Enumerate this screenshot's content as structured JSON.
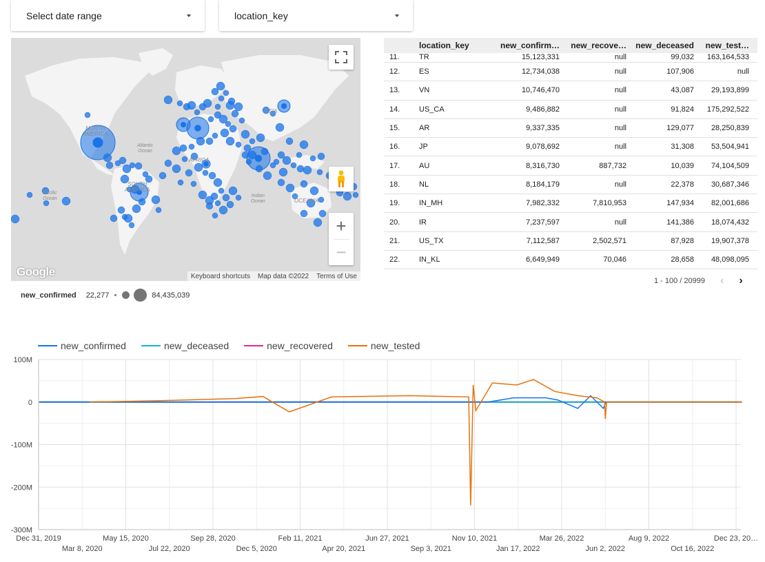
{
  "filters": {
    "date_range": "Select date range",
    "dimension": "location_key"
  },
  "map": {
    "labels": {
      "north_america": "NORTH\nAMERICA",
      "south_america": "SOUTH\nAMERICA",
      "africa": "AFRICA",
      "asia": "ASIA",
      "oceania": "OCEANIA",
      "atlantic": "Atlantic\nOcean",
      "pacific": "Pacific\nOcean",
      "indian": "Indian\nOcean"
    },
    "logo": "Google",
    "attribution": {
      "shortcuts": "Keyboard shortcuts",
      "map_data": "Map data ©2022",
      "terms": "Terms of Use"
    },
    "zoom_in": "+",
    "zoom_out": "−",
    "bubble_color": "#1a73e8"
  },
  "map_legend": {
    "metric": "new_confirmed",
    "min": "22,277",
    "max": "84,435,039"
  },
  "table": {
    "columns": [
      "location_key",
      "new_confirm…",
      "new_recove…",
      "new_deceased",
      "new_test…"
    ],
    "rows": [
      [
        "11.",
        "TR",
        "15,123,331",
        "null",
        "99,032",
        "163,164,533"
      ],
      [
        "12.",
        "ES",
        "12,734,038",
        "null",
        "107,906",
        "null"
      ],
      [
        "13.",
        "VN",
        "10,746,470",
        "null",
        "43,087",
        "29,193,899"
      ],
      [
        "14.",
        "US_CA",
        "9,486,882",
        "null",
        "91,824",
        "175,292,522"
      ],
      [
        "15.",
        "AR",
        "9,337,335",
        "null",
        "129,077",
        "28,250,839"
      ],
      [
        "16.",
        "JP",
        "9,078,692",
        "null",
        "31,308",
        "53,504,941"
      ],
      [
        "17.",
        "AU",
        "8,316,730",
        "887,732",
        "10,039",
        "74,104,509"
      ],
      [
        "18.",
        "NL",
        "8,184,179",
        "null",
        "22,378",
        "30,687,346"
      ],
      [
        "19.",
        "IN_MH",
        "7,982,332",
        "7,810,953",
        "147,934",
        "82,001,686"
      ],
      [
        "20.",
        "IR",
        "7,237,597",
        "null",
        "141,386",
        "18,074,432"
      ],
      [
        "21.",
        "US_TX",
        "7,112,587",
        "2,502,571",
        "87,928",
        "19,907,378"
      ],
      [
        "22.",
        "IN_KL",
        "6,649,949",
        "70,046",
        "28,658",
        "48,098,095"
      ]
    ],
    "pagination": "1 - 100 / 20999"
  },
  "chart_data": {
    "type": "line",
    "series": [
      {
        "name": "new_confirmed",
        "color": "#1a73e8"
      },
      {
        "name": "new_deceased",
        "color": "#12b5cb"
      },
      {
        "name": "new_recovered",
        "color": "#e52592"
      },
      {
        "name": "new_tested",
        "color": "#e8710a"
      }
    ],
    "y_ticks": [
      "100M",
      "0",
      "-100M",
      "-200M",
      "-300M"
    ],
    "ylim": [
      -300000000,
      100000000
    ],
    "x_ticks_top": [
      "Dec 31, 2019",
      "May 15, 2020",
      "Sep 28, 2020",
      "Feb 11, 2021",
      "Jun 27, 2021",
      "Nov 10, 2021",
      "Mar 26, 2022",
      "Aug 9, 2022",
      "Dec 23, 20…"
    ],
    "x_ticks_bottom": [
      "Mar 8, 2020",
      "Jul 22, 2020",
      "Dec 5, 2020",
      "Apr 20, 2021",
      "Sep 3, 2021",
      "Jan 17, 2022",
      "Jun 2, 2022",
      "Oct 16, 2022"
    ],
    "new_tested_points": [
      [
        "2020-03-20",
        0
      ],
      [
        "2020-07-01",
        3000000
      ],
      [
        "2020-11-01",
        8000000
      ],
      [
        "2020-12-15",
        13000000
      ],
      [
        "2021-01-25",
        -23000000
      ],
      [
        "2021-04-01",
        12000000
      ],
      [
        "2021-08-01",
        15000000
      ],
      [
        "2021-11-01",
        12000000
      ],
      [
        "2021-11-04",
        -243000000
      ],
      [
        "2021-11-08",
        40000000
      ],
      [
        "2021-11-12",
        -20000000
      ],
      [
        "2021-12-08",
        45000000
      ],
      [
        "2022-01-15",
        40000000
      ],
      [
        "2022-02-10",
        53000000
      ],
      [
        "2022-03-15",
        25000000
      ],
      [
        "2022-04-20",
        15000000
      ],
      [
        "2022-05-20",
        10000000
      ],
      [
        "2022-06-01",
        0
      ],
      [
        "2022-06-02",
        -40000000
      ],
      [
        "2022-06-04",
        0
      ],
      [
        "2023-01-01",
        0
      ]
    ],
    "new_confirmed_points": [
      [
        "2020-01-01",
        0
      ],
      [
        "2021-12-01",
        0
      ],
      [
        "2022-01-10",
        10000000
      ],
      [
        "2022-03-01",
        10000000
      ],
      [
        "2022-03-20",
        5000000
      ],
      [
        "2022-04-20",
        -15000000
      ],
      [
        "2022-05-10",
        15000000
      ],
      [
        "2022-05-30",
        -15000000
      ],
      [
        "2022-06-03",
        0
      ],
      [
        "2023-01-01",
        0
      ]
    ],
    "new_deceased_points": [
      [
        "2020-01-01",
        0
      ],
      [
        "2023-01-01",
        0
      ]
    ],
    "new_recovered_points": [
      [
        "2020-01-01",
        0
      ],
      [
        "2021-10-01",
        200000
      ],
      [
        "2022-06-01",
        0
      ],
      [
        "2023-01-01",
        0
      ]
    ]
  }
}
